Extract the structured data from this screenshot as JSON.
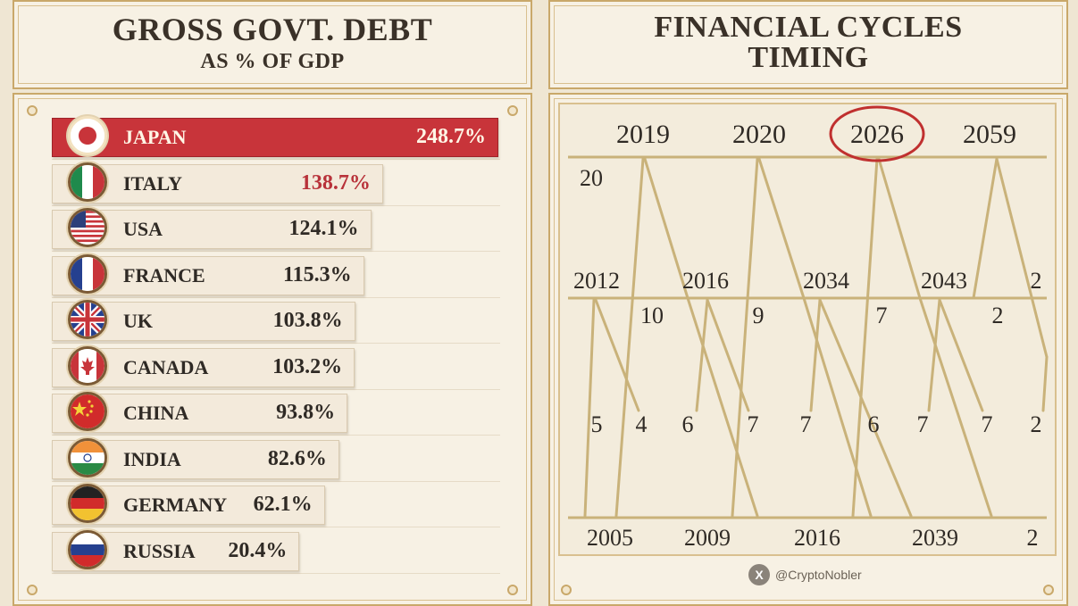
{
  "left_panel": {
    "title": "GROSS GOVT. DEBT",
    "subtitle": "AS % OF GDP"
  },
  "right_panel": {
    "title_line1": "FINANCIAL CYCLES",
    "title_line2": "TIMING"
  },
  "credit": {
    "icon": "x-logo-icon",
    "handle": "@CryptoNobler"
  },
  "chart_data": [
    {
      "type": "bar",
      "title": "GROSS GOVT. DEBT",
      "subtitle": "AS % OF GDP",
      "categories": [
        "JAPAN",
        "ITALY",
        "USA",
        "FRANCE",
        "UK",
        "CANADA",
        "CHINA",
        "INDIA",
        "GERMANY",
        "RUSSIA"
      ],
      "values": [
        248.7,
        138.7,
        124.1,
        115.3,
        103.8,
        103.2,
        93.8,
        82.6,
        62.1,
        20.4
      ],
      "value_labels": [
        "248.7%",
        "138.7%",
        "124.1%",
        "115.3%",
        "103.8%",
        "103.2%",
        "93.8%",
        "82.6%",
        "62.1%",
        "20.4%"
      ],
      "highlight": "JAPAN",
      "highlight_color": "#c8343a",
      "value_highlight_color": "#b8323a",
      "flags": [
        "japan-flag-icon",
        "italy-flag-icon",
        "usa-flag-icon",
        "france-flag-icon",
        "uk-flag-icon",
        "canada-flag-icon",
        "china-flag-icon",
        "india-flag-icon",
        "germany-flag-icon",
        "russia-flag-icon"
      ]
    },
    {
      "type": "diagram",
      "title": "FINANCIAL CYCLES TIMING",
      "top_row": [
        "2019",
        "2020",
        "2026",
        "2059"
      ],
      "circled": "2026",
      "circle_color": "#c0302f",
      "middle_row": [
        "2012",
        "2016",
        "2034",
        "2043",
        "2"
      ],
      "bottom_row": [
        "2005",
        "2009",
        "2016",
        "2039",
        "2"
      ],
      "upper_intervals": [
        "20",
        "10",
        "9",
        "7",
        "2"
      ],
      "lower_intervals": [
        "5",
        "4",
        "6",
        "7",
        "7",
        "6",
        "7",
        "7",
        "2"
      ],
      "line_color": "#c9b27a"
    }
  ]
}
